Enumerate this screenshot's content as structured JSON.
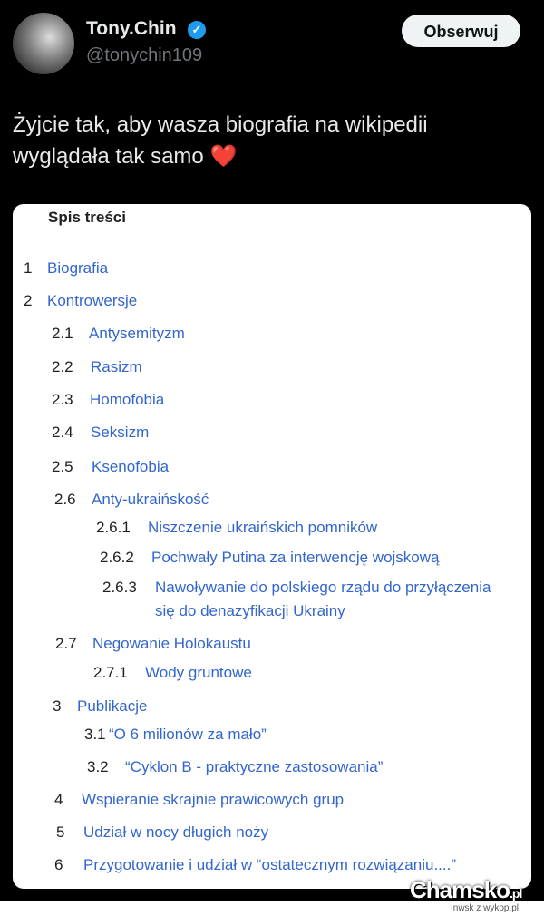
{
  "author": {
    "name": "Tony.Chin",
    "handle": "@tonychin109",
    "verified": true,
    "verified_color": "#1d9bf0"
  },
  "follow_label": "Obserwuj",
  "tweet_text": "Żyjcie tak, aby wasza biografia na wikipedii wyglądała tak samo ❤️",
  "toc": {
    "title": "Spis treści",
    "items": [
      {
        "num": "1",
        "label": "Biografia"
      },
      {
        "num": "2",
        "label": "Kontrowersje"
      },
      {
        "num": "2.1",
        "label": "Antysemityzm"
      },
      {
        "num": "2.2",
        "label": "Rasizm"
      },
      {
        "num": "2.3",
        "label": "Homofobia"
      },
      {
        "num": "2.4",
        "label": "Seksizm"
      },
      {
        "num": "2.5",
        "label": "Ksenofobia"
      },
      {
        "num": "2.6",
        "label": "Anty-ukraińskość"
      },
      {
        "num": "2.6.1",
        "label": "Niszczenie ukraińskich pomników"
      },
      {
        "num": "2.6.2",
        "label": "Pochwały Putina za interwencję wojskową"
      },
      {
        "num": "2.6.3",
        "label": "Nawoływanie do polskiego rządu do przyłączenia się do denazyfikacji Ukrainy"
      },
      {
        "num": "2.7",
        "label": "Negowanie Holokaustu"
      },
      {
        "num": "2.7.1",
        "label": "Wody gruntowe"
      },
      {
        "num": "3",
        "label": "Publikacje"
      },
      {
        "num": "3.1",
        "label": "“O 6 milionów za mało”"
      },
      {
        "num": "3.2",
        "label": "“Cyklon B - praktyczne zastosowania”"
      },
      {
        "num": "4",
        "label": "Wspieranie skrajnie prawicowych grup"
      },
      {
        "num": "5",
        "label": "Udział w nocy długich noży"
      },
      {
        "num": "6",
        "label": "Przygotowanie i udział w “ostatecznym rozwiązaniu....”"
      }
    ],
    "link_color": "#3366cc"
  },
  "watermark": {
    "brand": "Chamsko",
    "tld": ".pl",
    "sub": "Inwsk z wykop.pl"
  }
}
